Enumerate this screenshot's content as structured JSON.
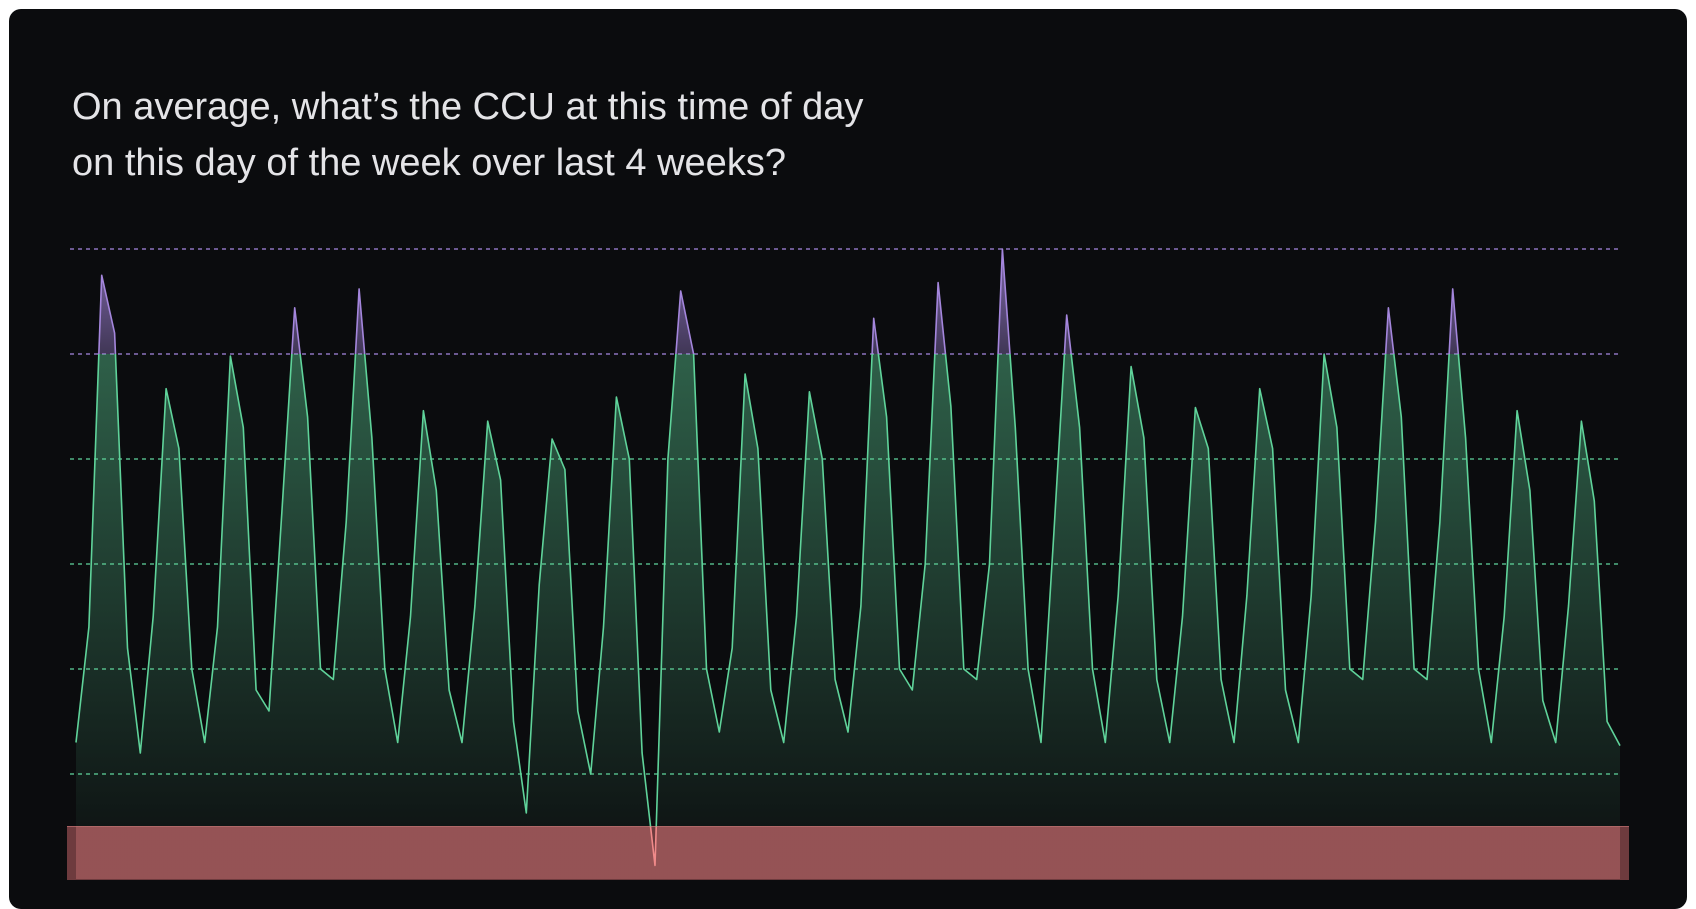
{
  "chart_data": {
    "type": "area",
    "title": [
      "On average, what’s the CCU at this time of day",
      "on this day of the week over last 4 weeks?"
    ],
    "series": [
      {
        "color": "#5fd39a",
        "values": [
          1.3,
          2.4,
          5.75,
          5.2,
          2.2,
          1.2,
          2.5,
          4.67,
          4.1,
          2.0,
          1.3,
          2.4,
          4.98,
          4.3,
          1.8,
          1.6,
          3.5,
          5.44,
          4.4,
          2.0,
          1.9,
          3.4,
          5.62,
          4.2,
          2.0,
          1.3,
          2.5,
          4.46,
          3.7,
          1.8,
          1.3,
          2.6,
          4.36,
          3.8,
          1.5,
          0.63,
          2.8,
          4.19,
          3.9,
          1.6,
          1.0,
          2.4,
          4.59,
          4.0,
          1.2,
          0.13,
          4.0,
          5.6,
          5.0,
          2.0,
          1.4,
          2.2,
          4.81,
          4.1,
          1.8,
          1.3,
          2.5,
          4.64,
          4.0,
          1.9,
          1.4,
          2.6,
          5.34,
          4.4,
          2.0,
          1.8,
          3.0,
          5.68,
          4.5,
          2.0,
          1.9,
          3.0,
          6.0,
          4.3,
          2.0,
          1.3,
          3.3,
          5.37,
          4.3,
          2.0,
          1.3,
          2.7,
          4.88,
          4.2,
          1.9,
          1.3,
          2.5,
          4.49,
          4.1,
          1.9,
          1.3,
          2.7,
          4.67,
          4.1,
          1.8,
          1.3,
          2.7,
          5.0,
          4.3,
          2.0,
          1.9,
          3.4,
          5.44,
          4.4,
          2.0,
          1.9,
          3.4,
          5.62,
          4.2,
          2.0,
          1.3,
          2.5,
          4.46,
          3.7,
          1.7,
          1.3,
          2.6,
          4.36,
          3.6,
          1.5,
          1.27
        ]
      }
    ],
    "ylim": [
      0,
      6
    ],
    "yticks": [
      1,
      2,
      3,
      4,
      5,
      6
    ],
    "grid": true,
    "high_threshold": 5,
    "high_color": "#a486dc",
    "low_threshold": 0.5,
    "low_color": "#f08a8a",
    "low_band_color": "#6e3b3e"
  }
}
